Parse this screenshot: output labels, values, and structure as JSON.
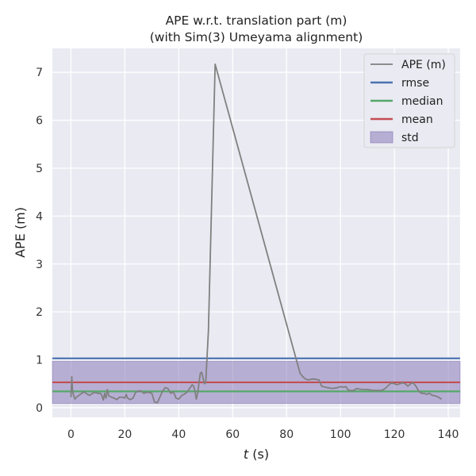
{
  "chart_data": {
    "type": "line",
    "title_line1": "APE w.r.t. translation part (m)",
    "title_line2": "(with Sim(3) Umeyama alignment)",
    "xlabel_italic": "t",
    "xlabel_unit": " (s)",
    "ylabel": "APE (m)",
    "xlim": [
      -6.9,
      144.4
    ],
    "ylim": [
      -0.2,
      7.5
    ],
    "xticks": [
      0,
      20,
      40,
      60,
      80,
      100,
      120,
      140
    ],
    "yticks": [
      0,
      1,
      2,
      3,
      4,
      5,
      6,
      7
    ],
    "grid": true,
    "legend_position": "top-right",
    "series": [
      {
        "name": "APE (m)",
        "color": "#808080",
        "x": [
          0.0,
          0.3,
          0.6,
          1.0,
          1.5,
          2.0,
          3.0,
          4.0,
          5.0,
          6.0,
          7.0,
          8.0,
          9.0,
          10.0,
          11.0,
          11.5,
          12.0,
          12.5,
          13.0,
          13.5,
          14.0,
          15.0,
          16.0,
          17.0,
          18.0,
          19.0,
          20.0,
          20.5,
          21.0,
          22.0,
          23.0,
          24.0,
          25.0,
          26.0,
          27.0,
          28.0,
          29.0,
          30.0,
          31.0,
          32.0,
          33.0,
          34.0,
          35.0,
          36.0,
          37.0,
          38.0,
          39.0,
          40.0,
          41.0,
          42.0,
          43.0,
          44.0,
          45.0,
          45.5,
          46.0,
          46.5,
          47.0,
          48.0,
          48.5,
          49.0,
          49.5,
          50.0,
          51.0,
          53.5,
          85.0,
          86.0,
          87.0,
          88.0,
          90.0,
          92.0,
          93.0,
          95.0,
          97.0,
          99.0,
          100.0,
          101.0,
          102.0,
          103.0,
          104.0,
          105.0,
          106.0,
          108.0,
          110.0,
          112.0,
          113.0,
          115.0,
          116.0,
          117.0,
          118.0,
          119.0,
          120.0,
          121.0,
          122.0,
          123.0,
          124.0,
          125.0,
          126.0,
          127.0,
          128.0,
          129.0,
          130.0,
          131.0,
          132.0,
          133.0,
          134.0,
          135.0,
          136.0,
          137.5
        ],
        "y": [
          0.22,
          0.65,
          0.35,
          0.25,
          0.18,
          0.22,
          0.26,
          0.3,
          0.33,
          0.28,
          0.26,
          0.3,
          0.32,
          0.3,
          0.3,
          0.25,
          0.16,
          0.3,
          0.2,
          0.38,
          0.25,
          0.22,
          0.2,
          0.17,
          0.22,
          0.22,
          0.2,
          0.28,
          0.2,
          0.17,
          0.2,
          0.32,
          0.35,
          0.35,
          0.3,
          0.32,
          0.32,
          0.3,
          0.12,
          0.1,
          0.22,
          0.35,
          0.42,
          0.4,
          0.3,
          0.33,
          0.2,
          0.18,
          0.25,
          0.28,
          0.32,
          0.4,
          0.48,
          0.45,
          0.35,
          0.18,
          0.3,
          0.72,
          0.74,
          0.62,
          0.5,
          0.52,
          1.6,
          7.17,
          0.72,
          0.65,
          0.6,
          0.58,
          0.6,
          0.58,
          0.45,
          0.42,
          0.4,
          0.42,
          0.44,
          0.43,
          0.44,
          0.36,
          0.36,
          0.36,
          0.4,
          0.38,
          0.38,
          0.36,
          0.36,
          0.36,
          0.38,
          0.42,
          0.48,
          0.52,
          0.5,
          0.48,
          0.5,
          0.52,
          0.5,
          0.45,
          0.5,
          0.52,
          0.45,
          0.35,
          0.3,
          0.3,
          0.28,
          0.3,
          0.26,
          0.25,
          0.23,
          0.18
        ]
      },
      {
        "name": "rmse",
        "color": "#4c72b0",
        "value": 1.03
      },
      {
        "name": "median",
        "color": "#55a868",
        "value": 0.34
      },
      {
        "name": "mean",
        "color": "#c44e52",
        "value": 0.53
      },
      {
        "name": "std",
        "color": "#8172b3",
        "band": [
          0.09,
          0.97
        ]
      }
    ]
  }
}
